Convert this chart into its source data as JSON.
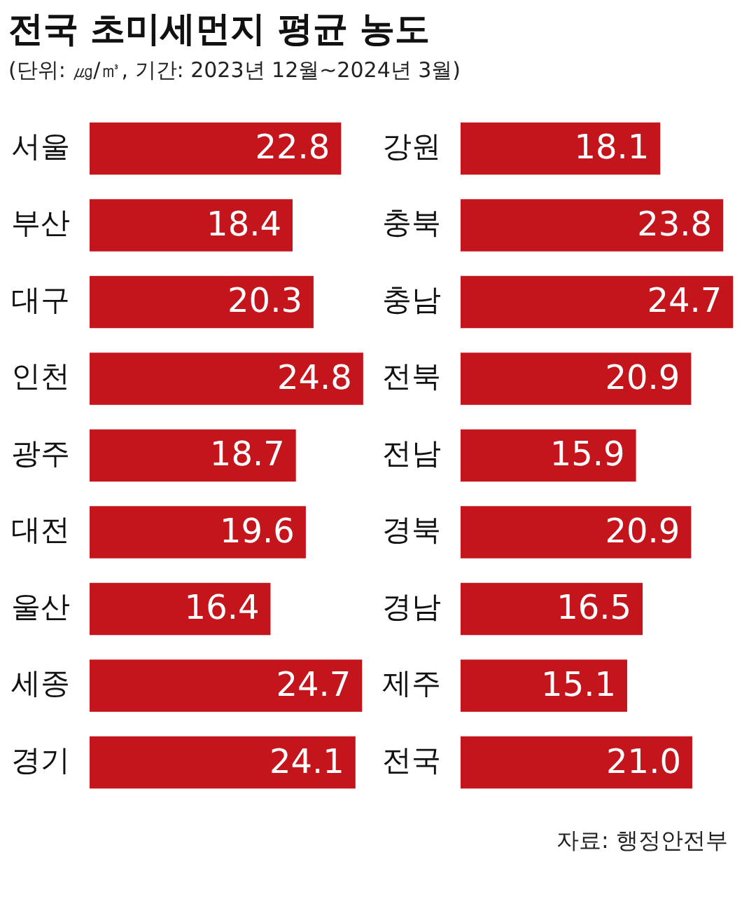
{
  "chart_data": [
    {
      "type": "bar",
      "orientation": "horizontal",
      "title": "전국 초미세먼지 평균 농도",
      "subtitle": "(단위: ㎍/㎥, 기간: 2023년 12월~2024년 3월)",
      "categories": [
        "서울",
        "부산",
        "대구",
        "인천",
        "광주",
        "대전",
        "울산",
        "세종",
        "경기"
      ],
      "values": [
        22.8,
        18.4,
        20.3,
        24.8,
        18.7,
        19.6,
        16.4,
        24.7,
        24.1
      ],
      "value_labels": [
        "22.8",
        "18.4",
        "20.3",
        "24.8",
        "18.7",
        "19.6",
        "16.4",
        "24.7",
        "24.1"
      ],
      "color": "#c4141c",
      "xlim": [
        0,
        25
      ],
      "tick_labels": "y"
    },
    {
      "type": "bar",
      "orientation": "horizontal",
      "categories": [
        "강원",
        "충북",
        "충남",
        "전북",
        "전남",
        "경북",
        "경남",
        "제주",
        "전국"
      ],
      "values": [
        18.1,
        23.8,
        24.7,
        20.9,
        15.9,
        20.9,
        16.5,
        15.1,
        21.0
      ],
      "value_labels": [
        "18.1",
        "23.8",
        "24.7",
        "20.9",
        "15.9",
        "20.9",
        "16.5",
        "15.1",
        "21.0"
      ],
      "color": "#c4141c",
      "xlim": [
        0,
        25
      ],
      "tick_labels": "y",
      "annotations": [
        "자료: 행정안전부"
      ]
    }
  ]
}
